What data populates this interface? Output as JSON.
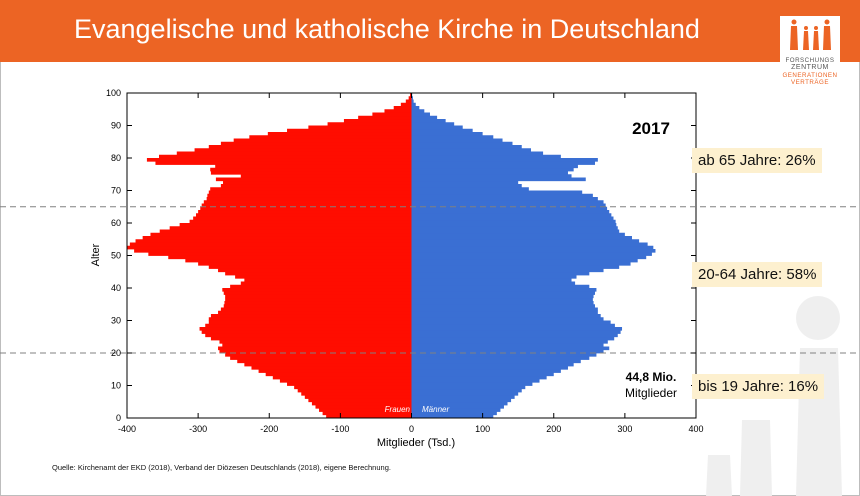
{
  "slide": {
    "title": "Evangelische und katholische Kirche in Deutschland",
    "source": "Quelle: Kirchenamt der EKD (2018), Verband der Diözesen Deutschlands (2018), eigene Berechnung.",
    "logo": {
      "line1": "FORSCHUNGS",
      "line2": "ZENTRUM",
      "line3": "GENERATIONEN",
      "line4": "VERTRÄGE"
    },
    "callouts": {
      "age65": "ab 65 Jahre: 26%",
      "age20_64": "20-64 Jahre: 58%",
      "age0_19": "bis 19 Jahre: 16%"
    },
    "colors": {
      "header": "#ec6424",
      "frauen": "#ff0d00",
      "maenner": "#3a6fd3",
      "callout_bg": "#fdf0cf"
    }
  },
  "chart_data": {
    "type": "bar",
    "orientation": "horizontal-pyramid",
    "year_label": "2017",
    "total_value": "44,8 Mio.",
    "total_label": "Mitglieder",
    "xlabel": "Mitglieder (Tsd.)",
    "ylabel": "Alter",
    "xlim": [
      -400,
      400
    ],
    "ylim": [
      0,
      100
    ],
    "xticks": [
      "-400",
      "-300",
      "-200",
      "-100",
      "0",
      "100",
      "200",
      "300",
      "400"
    ],
    "yticks": [
      "0",
      "10",
      "20",
      "30",
      "40",
      "50",
      "60",
      "70",
      "80",
      "90",
      "100"
    ],
    "reference_lines_age": [
      20,
      65
    ],
    "series_labels": {
      "left": "Frauen",
      "right": "Männer"
    },
    "ages": [
      0,
      1,
      2,
      3,
      4,
      5,
      6,
      7,
      8,
      9,
      10,
      11,
      12,
      13,
      14,
      15,
      16,
      17,
      18,
      19,
      20,
      21,
      22,
      23,
      24,
      25,
      26,
      27,
      28,
      29,
      30,
      31,
      32,
      33,
      34,
      35,
      36,
      37,
      38,
      39,
      40,
      41,
      42,
      43,
      44,
      45,
      46,
      47,
      48,
      49,
      50,
      51,
      52,
      53,
      54,
      55,
      56,
      57,
      58,
      59,
      60,
      61,
      62,
      63,
      64,
      65,
      66,
      67,
      68,
      69,
      70,
      71,
      72,
      73,
      74,
      75,
      76,
      77,
      78,
      79,
      80,
      81,
      82,
      83,
      84,
      85,
      86,
      87,
      88,
      89,
      90,
      91,
      92,
      93,
      94,
      95,
      96,
      97,
      98,
      99
    ],
    "series": [
      {
        "name": "Frauen",
        "values": [
          120,
          125,
          130,
          135,
          140,
          145,
          150,
          155,
          160,
          165,
          175,
          185,
          195,
          205,
          215,
          225,
          235,
          245,
          255,
          262,
          270,
          272,
          266,
          270,
          282,
          290,
          295,
          298,
          290,
          285,
          285,
          282,
          272,
          268,
          264,
          263,
          262,
          262,
          264,
          266,
          255,
          240,
          235,
          248,
          262,
          272,
          285,
          300,
          318,
          342,
          370,
          390,
          400,
          396,
          388,
          378,
          367,
          354,
          340,
          326,
          312,
          307,
          303,
          300,
          297,
          295,
          292,
          288,
          287,
          285,
          283,
          268,
          265,
          275,
          240,
          282,
          283,
          276,
          360,
          372,
          355,
          330,
          305,
          285,
          268,
          250,
          228,
          202,
          175,
          145,
          118,
          95,
          75,
          55,
          38,
          25,
          15,
          8,
          4,
          2
        ]
      },
      {
        "name": "Männer",
        "values": [
          115,
          120,
          125,
          130,
          135,
          140,
          145,
          150,
          155,
          160,
          170,
          180,
          190,
          200,
          210,
          220,
          228,
          238,
          250,
          260,
          270,
          278,
          270,
          276,
          285,
          290,
          294,
          296,
          286,
          280,
          270,
          266,
          262,
          262,
          258,
          256,
          255,
          256,
          258,
          260,
          250,
          230,
          225,
          232,
          250,
          270,
          292,
          308,
          318,
          330,
          338,
          343,
          340,
          332,
          320,
          310,
          300,
          292,
          290,
          288,
          287,
          284,
          281,
          278,
          275,
          273,
          270,
          262,
          255,
          240,
          165,
          155,
          150,
          245,
          225,
          220,
          228,
          234,
          258,
          262,
          210,
          185,
          168,
          155,
          142,
          128,
          115,
          100,
          86,
          72,
          60,
          48,
          36,
          26,
          18,
          11,
          6,
          3,
          2,
          1
        ]
      }
    ]
  }
}
